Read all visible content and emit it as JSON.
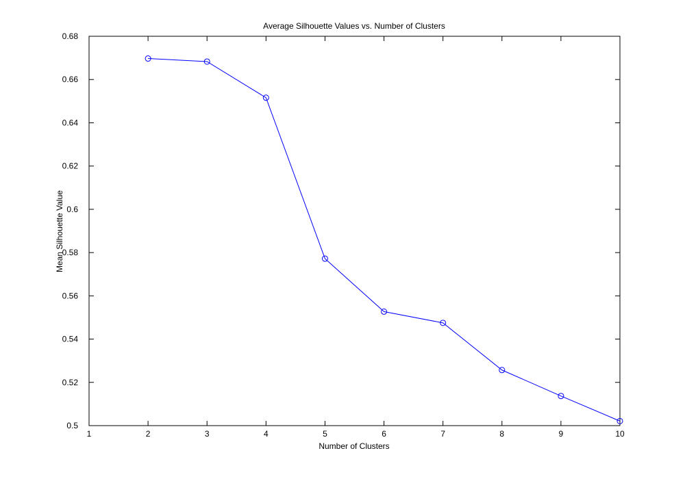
{
  "chart_data": {
    "type": "line",
    "title": "Average Silhouette Values vs. Number of Clusters",
    "xlabel": "Number of Clusters",
    "ylabel": "Mean Silhouette Value",
    "xlim": [
      1,
      10
    ],
    "ylim": [
      0.5,
      0.68
    ],
    "xticks": [
      1,
      2,
      3,
      4,
      5,
      6,
      7,
      8,
      9,
      10
    ],
    "yticks": [
      0.5,
      0.52,
      0.54,
      0.56,
      0.58,
      0.6,
      0.62,
      0.64,
      0.66,
      0.68
    ],
    "ytick_labels": [
      "0.5",
      "0.52",
      "0.54",
      "0.56",
      "0.58",
      "0.6",
      "0.62",
      "0.64",
      "0.66",
      "0.68"
    ],
    "grid": false,
    "marker": "circle",
    "series": [
      {
        "color": "#0000ff",
        "x": [
          2,
          3,
          4,
          5,
          6,
          7,
          8,
          9,
          10
        ],
        "values": [
          0.6697,
          0.6683,
          0.6516,
          0.5772,
          0.5527,
          0.5475,
          0.5257,
          0.5137,
          0.5021
        ]
      }
    ]
  }
}
